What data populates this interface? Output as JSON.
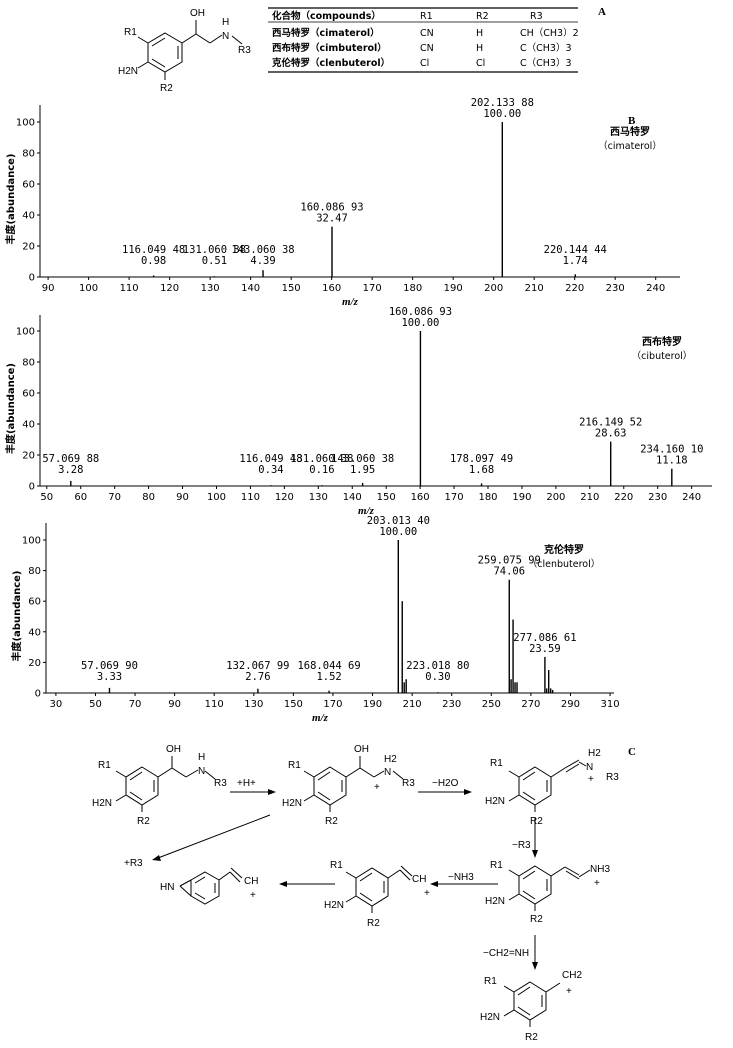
{
  "panel_labels": {
    "a": "A",
    "b": "B",
    "c": "C"
  },
  "table": {
    "headers": [
      "化合物（compounds）",
      "R1",
      "R2",
      "R3"
    ],
    "rows": [
      [
        "西马特罗（cimaterol）",
        "CN",
        "H",
        "CH（CH3）2"
      ],
      [
        "西布特罗（cimbuterol）",
        "CN",
        "H",
        "C（CH3）3"
      ],
      [
        "克伦特罗（clenbuterol）",
        "Cl",
        "Cl",
        "C（CH3）3"
      ]
    ]
  },
  "structure_labels": {
    "r1": "R1",
    "r2": "R2",
    "r3": "R3",
    "oh": "OH",
    "h": "H",
    "n": "N",
    "nh2": "H2N",
    "h2": "H2",
    "plus": "+",
    "hn": "HN",
    "ch": "CH",
    "ch2": "CH2",
    "nh3": "NH3"
  },
  "scheme": {
    "step_h": "+H+",
    "step_h2o": "−H2O",
    "step_r3": "−R3",
    "step_nh3": "−NH3",
    "step_ch2nh": "−CH2=NH",
    "loss_r3": "+R3"
  },
  "chart_data": [
    {
      "type": "bar",
      "panel": "B",
      "name_cn": "西马特罗",
      "name_en": "（cimaterol）",
      "xlabel": "m/z",
      "ylabel": "丰度(abundance)",
      "xlim": [
        88,
        246
      ],
      "ylim": [
        0,
        105
      ],
      "xticks": [
        90,
        100,
        110,
        120,
        130,
        140,
        150,
        160,
        170,
        180,
        190,
        200,
        210,
        220,
        230,
        240
      ],
      "yticks": [
        0,
        20,
        40,
        60,
        80,
        100
      ],
      "peaks": [
        {
          "x": 116.05,
          "y": 0.98,
          "mz": "116.049 48",
          "val": "0.98",
          "label": true
        },
        {
          "x": 131.06,
          "y": 0.51,
          "mz": "131.060 38",
          "val": "0.51",
          "label": true
        },
        {
          "x": 143.06,
          "y": 4.39,
          "mz": "143.060 38",
          "val": "4.39",
          "label": true
        },
        {
          "x": 160.09,
          "y": 32.47,
          "mz": "160.086 93",
          "val": "32.47",
          "label": true
        },
        {
          "x": 202.13,
          "y": 100.0,
          "mz": "202.133 88",
          "val": "100.00",
          "label": true
        },
        {
          "x": 220.14,
          "y": 1.74,
          "mz": "220.144 44",
          "val": "1.74",
          "label": true
        }
      ]
    },
    {
      "type": "bar",
      "panel": "",
      "name_cn": "西布特罗",
      "name_en": "（cibuterol）",
      "xlabel": "m/z",
      "ylabel": "丰度(abundance)",
      "xlim": [
        48,
        246
      ],
      "ylim": [
        0,
        110
      ],
      "xticks": [
        50,
        60,
        70,
        80,
        90,
        100,
        110,
        120,
        130,
        140,
        150,
        160,
        170,
        180,
        190,
        200,
        210,
        220,
        230,
        240
      ],
      "yticks": [
        0,
        20,
        40,
        60,
        80,
        100
      ],
      "peaks": [
        {
          "x": 57.07,
          "y": 3.28,
          "mz": "57.069 88",
          "val": "3.28",
          "label": true
        },
        {
          "x": 116.05,
          "y": 0.34,
          "mz": "116.049 48",
          "val": "0.34",
          "label": true
        },
        {
          "x": 131.06,
          "y": 0.16,
          "mz": "131.060 38",
          "val": "0.16",
          "label": true
        },
        {
          "x": 143.06,
          "y": 1.95,
          "mz": "143.060 38",
          "val": "1.95",
          "label": true
        },
        {
          "x": 160.09,
          "y": 100.0,
          "mz": "160.086 93",
          "val": "100.00",
          "label": true
        },
        {
          "x": 178.1,
          "y": 1.68,
          "mz": "178.097 49",
          "val": "1.68",
          "label": true
        },
        {
          "x": 216.15,
          "y": 28.63,
          "mz": "216.149 52",
          "val": "28.63",
          "label": true
        },
        {
          "x": 234.16,
          "y": 11.18,
          "mz": "234.160 10",
          "val": "11.18",
          "label": true
        }
      ]
    },
    {
      "type": "bar",
      "panel": "",
      "name_cn": "克伦特罗",
      "name_en": "（clenbuterol）",
      "xlabel": "m/z",
      "ylabel": "丰度(abundance)",
      "xlim": [
        25,
        312
      ],
      "ylim": [
        0,
        115
      ],
      "xticks": [
        30,
        50,
        70,
        90,
        110,
        130,
        150,
        170,
        190,
        210,
        230,
        250,
        270,
        290,
        310
      ],
      "yticks": [
        0,
        20,
        40,
        60,
        80,
        100
      ],
      "peaks": [
        {
          "x": 57.07,
          "y": 3.33,
          "mz": "57.069 90",
          "val": "3.33",
          "label": true
        },
        {
          "x": 132.07,
          "y": 2.76,
          "mz": "132.067 99",
          "val": "2.76",
          "label": true
        },
        {
          "x": 168.04,
          "y": 1.52,
          "mz": "168.044 69",
          "val": "1.52",
          "label": true
        },
        {
          "x": 203.01,
          "y": 100.0,
          "mz": "203.013 40",
          "val": "100.00",
          "label": true
        },
        {
          "x": 205.0,
          "y": 60.0,
          "label": false
        },
        {
          "x": 206.0,
          "y": 7.0,
          "label": false
        },
        {
          "x": 207.0,
          "y": 9.0,
          "label": false
        },
        {
          "x": 223.02,
          "y": 0.3,
          "mz": "223.018 80",
          "val": "0.30",
          "label": true
        },
        {
          "x": 259.08,
          "y": 74.06,
          "mz": "259.075 99",
          "val": "74.06",
          "label": true
        },
        {
          "x": 260.0,
          "y": 9.0,
          "label": false
        },
        {
          "x": 261.0,
          "y": 48.0,
          "label": false
        },
        {
          "x": 262.0,
          "y": 7.0,
          "label": false
        },
        {
          "x": 263.0,
          "y": 7.0,
          "label": false
        },
        {
          "x": 277.09,
          "y": 23.59,
          "mz": "277.086 61",
          "val": "23.59",
          "label": true
        },
        {
          "x": 278.0,
          "y": 3.0,
          "label": false
        },
        {
          "x": 279.0,
          "y": 15.0,
          "label": false
        },
        {
          "x": 280.0,
          "y": 3.0,
          "label": false
        },
        {
          "x": 281.0,
          "y": 2.0,
          "label": false
        }
      ]
    }
  ]
}
